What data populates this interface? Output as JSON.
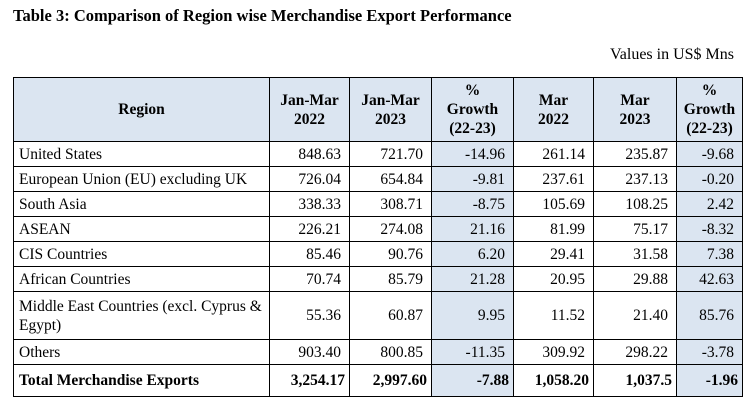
{
  "title": "Table 3: Comparison of Region wise Merchandise Export Performance",
  "units": "Values in US$ Mns",
  "headers": {
    "region": "Region",
    "col1": [
      "Jan-Mar",
      "2022"
    ],
    "col2": [
      "Jan-Mar",
      "2023"
    ],
    "col3": [
      "%",
      "Growth",
      "(22-23)"
    ],
    "col4": [
      "Mar",
      "2022"
    ],
    "col5": [
      "Mar",
      "2023"
    ],
    "col6": [
      "%",
      "Growth",
      "(22-23)"
    ]
  },
  "rows": [
    {
      "region": "United States",
      "c1": "848.63",
      "c2": "721.70",
      "c3": "-14.96",
      "c4": "261.14",
      "c5": "235.87",
      "c6": "-9.68"
    },
    {
      "region": "European Union (EU) excluding UK",
      "c1": "726.04",
      "c2": "654.84",
      "c3": "-9.81",
      "c4": "237.61",
      "c5": "237.13",
      "c6": "-0.20"
    },
    {
      "region": "South Asia",
      "c1": "338.33",
      "c2": "308.71",
      "c3": "-8.75",
      "c4": "105.69",
      "c5": "108.25",
      "c6": "2.42"
    },
    {
      "region": "ASEAN",
      "c1": "226.21",
      "c2": "274.08",
      "c3": "21.16",
      "c4": "81.99",
      "c5": "75.17",
      "c6": "-8.32"
    },
    {
      "region": "CIS Countries",
      "c1": "85.46",
      "c2": "90.76",
      "c3": "6.20",
      "c4": "29.41",
      "c5": "31.58",
      "c6": "7.38"
    },
    {
      "region": "African Countries",
      "c1": "70.74",
      "c2": "85.79",
      "c3": "21.28",
      "c4": "20.95",
      "c5": "29.88",
      "c6": "42.63"
    },
    {
      "region": "Middle East Countries (excl. Cyprus & Egypt)",
      "c1": "55.36",
      "c2": "60.87",
      "c3": "9.95",
      "c4": "11.52",
      "c5": "21.40",
      "c6": "85.76"
    },
    {
      "region": "Others",
      "c1": "903.40",
      "c2": "800.85",
      "c3": "-11.35",
      "c4": "309.92",
      "c5": "298.22",
      "c6": "-3.78"
    }
  ],
  "total": {
    "region": "Total Merchandise Exports",
    "c1": "3,254.17",
    "c2": "2,997.60",
    "c3": "-7.88",
    "c4": "1,058.20",
    "c5": "1,037.5",
    "c6": "-1.96"
  },
  "colors": {
    "header_bg": "#dbe5f1",
    "growth_bg": "#dbe5f1"
  }
}
